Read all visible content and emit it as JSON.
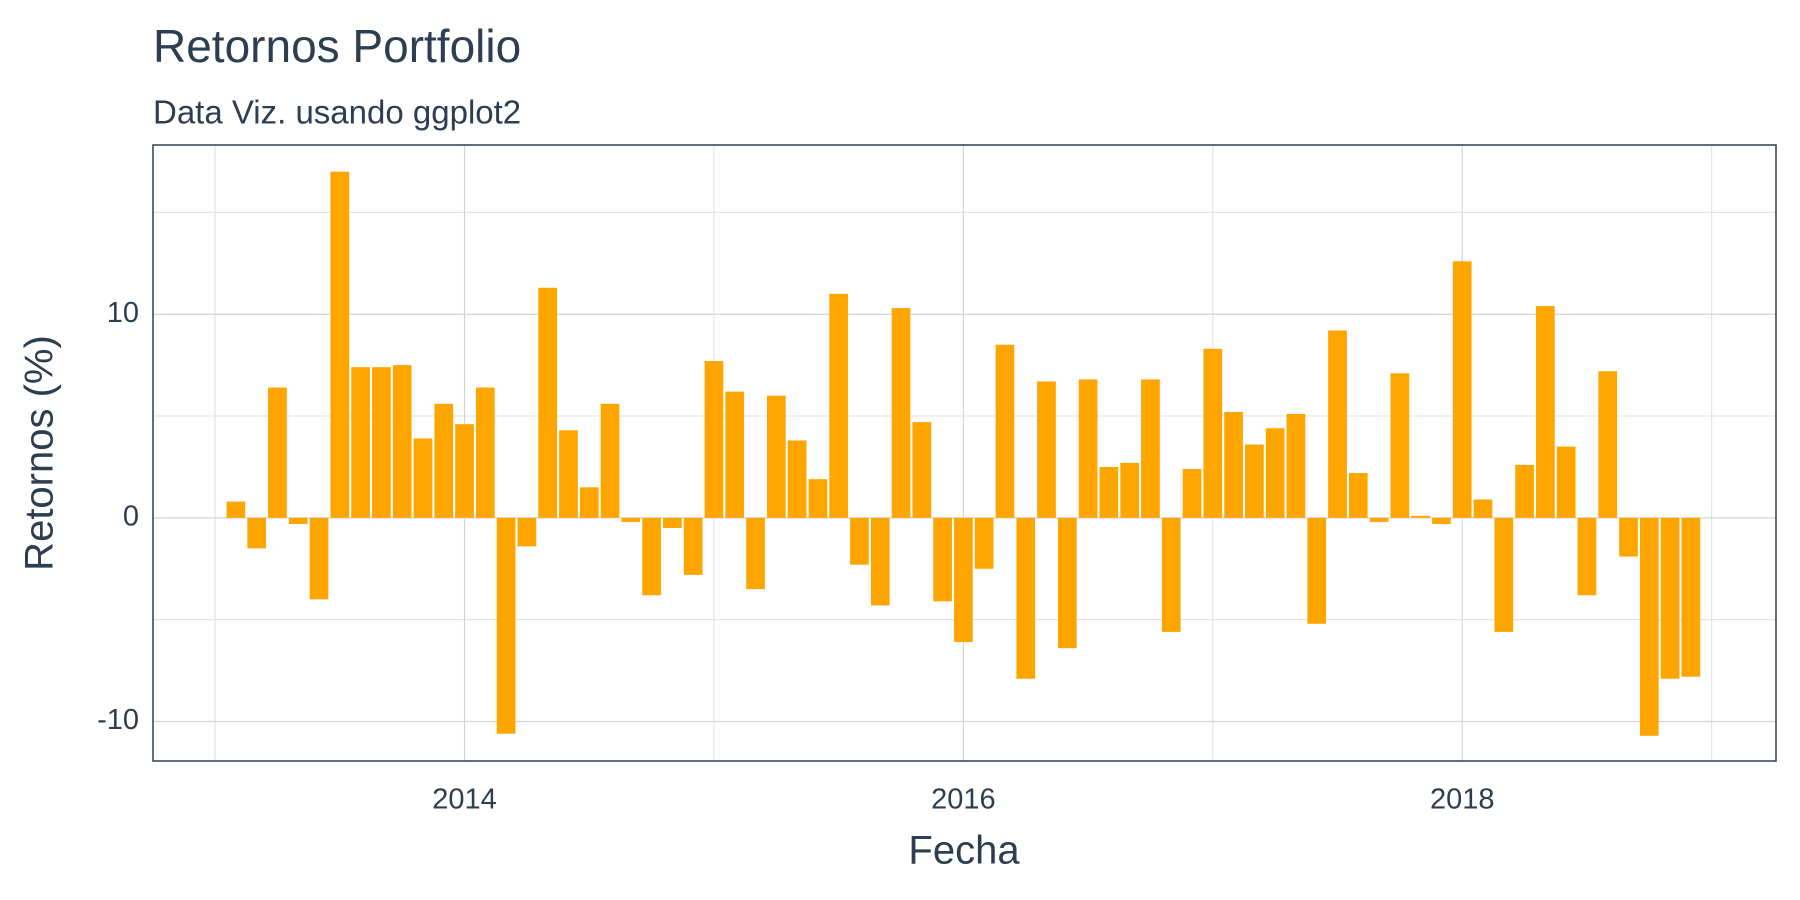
{
  "chart_data": {
    "type": "bar",
    "title": "Retornos Portfolio",
    "subtitle": "Data Viz. usando ggplot2",
    "x_label": "Fecha",
    "y_label": "Retornos (%)",
    "color": "#ffa500",
    "grid": true,
    "x": [
      2013.0833,
      2013.1667,
      2013.25,
      2013.3333,
      2013.4167,
      2013.5,
      2013.5833,
      2013.6667,
      2013.75,
      2013.8333,
      2013.9167,
      2014.0,
      2014.0833,
      2014.1667,
      2014.25,
      2014.3333,
      2014.4167,
      2014.5,
      2014.5833,
      2014.6667,
      2014.75,
      2014.8333,
      2014.9167,
      2015.0,
      2015.0833,
      2015.1667,
      2015.25,
      2015.3333,
      2015.4167,
      2015.5,
      2015.5833,
      2015.6667,
      2015.75,
      2015.8333,
      2015.9167,
      2016.0,
      2016.0833,
      2016.1667,
      2016.25,
      2016.3333,
      2016.4167,
      2016.5,
      2016.5833,
      2016.6667,
      2016.75,
      2016.8333,
      2016.9167,
      2017.0,
      2017.0833,
      2017.1667,
      2017.25,
      2017.3333,
      2017.4167,
      2017.5,
      2017.5833,
      2017.6667,
      2017.75,
      2017.8333,
      2017.9167,
      2018.0,
      2018.0833,
      2018.1667,
      2018.25,
      2018.3333,
      2018.4167,
      2018.5,
      2018.5833,
      2018.6667,
      2018.75,
      2018.8333,
      2018.9167
    ],
    "values": [
      0.8,
      -1.5,
      6.4,
      -0.3,
      -4.0,
      17.0,
      7.4,
      7.4,
      7.5,
      3.9,
      5.6,
      4.6,
      6.4,
      -10.6,
      -1.4,
      11.3,
      4.3,
      1.5,
      5.6,
      -0.2,
      -3.8,
      -0.5,
      -2.8,
      7.7,
      6.2,
      -3.5,
      6.0,
      3.8,
      1.9,
      11.0,
      -2.3,
      -4.3,
      10.3,
      4.7,
      -4.1,
      -6.1,
      -2.5,
      8.5,
      -7.9,
      6.7,
      -6.4,
      6.8,
      2.5,
      2.7,
      6.8,
      -5.6,
      2.4,
      8.3,
      5.2,
      3.6,
      4.4,
      5.1,
      -5.2,
      9.2,
      2.2,
      -0.2,
      7.1,
      0.1,
      -0.3,
      12.6,
      0.9,
      -5.6,
      2.6,
      10.4,
      3.5,
      -3.8,
      7.2,
      -1.9,
      -10.7,
      -7.9,
      -7.8
    ],
    "xlim": [
      2012.751,
      2019.258
    ],
    "xticks": [
      2014,
      2016,
      2018
    ],
    "x_minor_grid": [
      2013,
      2015,
      2017,
      2019
    ],
    "ylim": [
      -11.94,
      18.31
    ],
    "yticks": [
      -10,
      0,
      10
    ],
    "y_minor_grid": [
      -5,
      5,
      15
    ]
  }
}
